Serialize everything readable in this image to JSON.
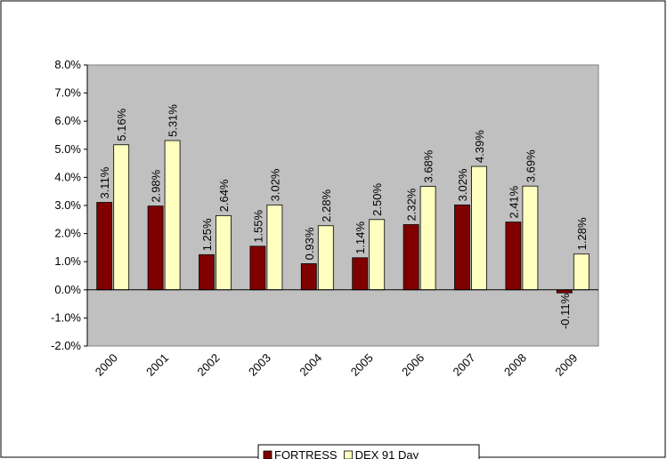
{
  "chart_data": {
    "type": "bar",
    "categories": [
      "2000",
      "2001",
      "2002",
      "2003",
      "2004",
      "2005",
      "2006",
      "2007",
      "2008",
      "2009"
    ],
    "series": [
      {
        "name": "FORTRESS",
        "color": "#800000",
        "values": [
          3.11,
          2.98,
          1.25,
          1.55,
          0.93,
          1.14,
          2.32,
          3.02,
          2.41,
          -0.11
        ],
        "value_labels": [
          "3.11%",
          "2.98%",
          "1.25%",
          "1.55%",
          "0.93%",
          "1.14%",
          "2.32%",
          "3.02%",
          "2.41%",
          "-0.11%"
        ]
      },
      {
        "name": "DEX 91 Day",
        "color": "#ffffc0",
        "values": [
          5.16,
          5.31,
          2.64,
          3.02,
          2.28,
          2.5,
          3.68,
          4.39,
          3.69,
          1.28
        ],
        "value_labels": [
          "5.16%",
          "5.31%",
          "2.64%",
          "3.02%",
          "2.28%",
          "2.50%",
          "3.68%",
          "4.39%",
          "3.69%",
          "1.28%"
        ]
      }
    ],
    "ylim": [
      -2,
      8
    ],
    "yticks": [
      {
        "value": -2,
        "label": "-2.0%"
      },
      {
        "value": -1,
        "label": "-1.0%"
      },
      {
        "value": 0,
        "label": "0.0%"
      },
      {
        "value": 1,
        "label": "1.0%"
      },
      {
        "value": 2,
        "label": "2.0%"
      },
      {
        "value": 3,
        "label": "3.0%"
      },
      {
        "value": 4,
        "label": "4.0%"
      },
      {
        "value": 5,
        "label": "5.0%"
      },
      {
        "value": 6,
        "label": "6.0%"
      },
      {
        "value": 7,
        "label": "7.0%"
      },
      {
        "value": 8,
        "label": "8.0%"
      }
    ],
    "grid": false,
    "legend": "bottom",
    "plot_background": "#c0c0c0"
  }
}
